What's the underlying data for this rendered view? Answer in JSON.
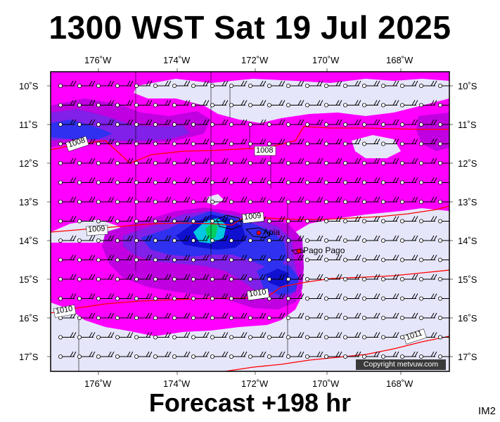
{
  "title": "1300 WST Sat 19 Jul 2025",
  "forecast_label": "Forecast +198 hr",
  "image_code": "IM2",
  "copyright": "Copyright metvuw.com",
  "longitude_labels": [
    "176˚W",
    "174˚W",
    "172˚W",
    "170˚W",
    "168˚W"
  ],
  "latitude_labels": [
    "10˚S",
    "11˚S",
    "12˚S",
    "13˚S",
    "14˚S",
    "15˚S",
    "16˚S",
    "17˚S"
  ],
  "isobar_labels": [
    "1008",
    "1008",
    "1009",
    "1009",
    "1010",
    "1010",
    "1011"
  ],
  "places": [
    "Apia",
    "Pago Pago"
  ],
  "colors": {
    "background_field": "#e6e6fa",
    "magenta": "#ff00ff",
    "purple": "#c000e0",
    "violet": "#8020e8",
    "blue": "#3030f0",
    "deep_blue": "#1010d0",
    "cyan": "#00c8e0",
    "green": "#00d060",
    "isobar": "#ff0000"
  }
}
